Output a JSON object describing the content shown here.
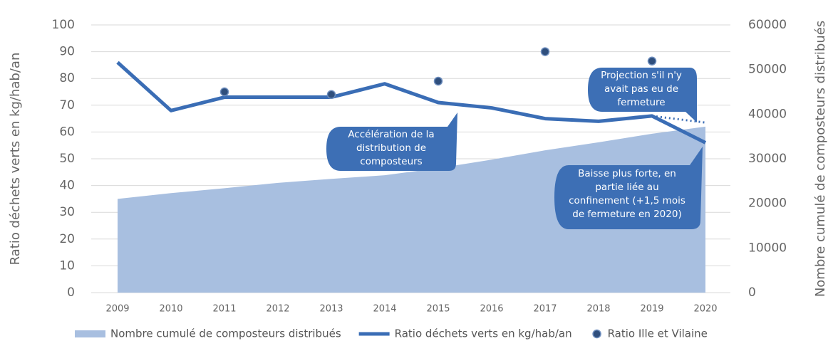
{
  "chart_data": {
    "type": "combo",
    "categories": [
      "2009",
      "2010",
      "2011",
      "2012",
      "2013",
      "2014",
      "2015",
      "2016",
      "2017",
      "2018",
      "2019",
      "2020"
    ],
    "y_label": "Ratio déchets verts en kg/hab/an",
    "y2_label": "Nombre cumulé de composteurs distribués",
    "ylim": [
      0,
      100
    ],
    "yticks": [
      0,
      10,
      20,
      30,
      40,
      50,
      60,
      70,
      80,
      90,
      100
    ],
    "y2lim": [
      0,
      60000
    ],
    "y2ticks": [
      0,
      10000,
      20000,
      30000,
      40000,
      50000,
      60000
    ],
    "grid": true,
    "legend": "bottom",
    "series": [
      {
        "name": "Nombre cumulé de composteurs distribués",
        "kind": "area",
        "axis": "y2",
        "color": "#a8bfe0",
        "values": [
          21000,
          22300,
          23400,
          24600,
          25500,
          26300,
          27900,
          29800,
          31900,
          33700,
          35600,
          37200
        ]
      },
      {
        "name": "Ratio déchets verts en kg/hab/an",
        "kind": "line",
        "color": "#3a6db5",
        "values": [
          86,
          68,
          73,
          73,
          73,
          78,
          71,
          69,
          65,
          64,
          66,
          56
        ]
      },
      {
        "name": "Ratio Ille et Vilaine",
        "kind": "scatter",
        "color": "#2f4f7d",
        "values": [
          null,
          null,
          75,
          null,
          74,
          null,
          79,
          null,
          90,
          null,
          86.5,
          null
        ]
      },
      {
        "kind": "dotted",
        "color": "#3a6db5",
        "values": [
          null,
          null,
          null,
          null,
          null,
          null,
          null,
          null,
          null,
          null,
          66,
          63.5
        ]
      }
    ],
    "annotations": [
      {
        "lines": [
          "Accélération de la",
          "distribution de",
          "composteurs"
        ]
      },
      {
        "lines": [
          "Projection s'il n'y",
          "avait pas eu de",
          "fermeture"
        ]
      },
      {
        "lines": [
          "Baisse plus forte, en",
          "partie liée au",
          "confinement (+1,5 mois",
          "de fermeture en 2020)"
        ]
      }
    ]
  }
}
